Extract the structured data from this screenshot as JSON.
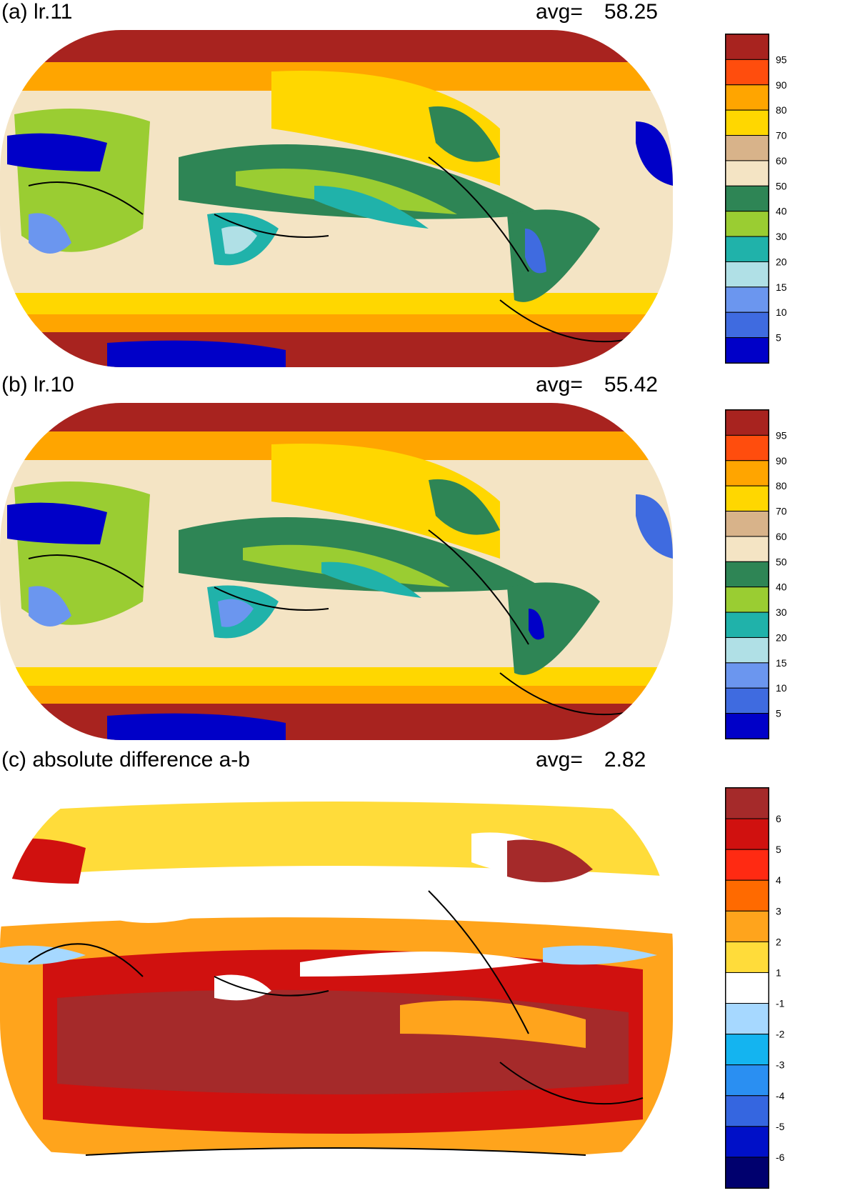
{
  "panels": [
    {
      "id": "a",
      "title": "(a) lr.11",
      "avg_label": "avg=",
      "avg_value": "58.25",
      "colorbar": {
        "colors": [
          "#a8231f",
          "#ff4d0d",
          "#ffa500",
          "#ffd700",
          "#d8b38a",
          "#f4e4c4",
          "#2e8555",
          "#9acd32",
          "#20b2aa",
          "#b0e0e6",
          "#6b96ef",
          "#3f6be0",
          "#0000c8"
        ],
        "labels": [
          "95",
          "90",
          "80",
          "70",
          "60",
          "50",
          "40",
          "30",
          "20",
          "15",
          "10",
          "5"
        ]
      }
    },
    {
      "id": "b",
      "title": "(b) lr.10",
      "avg_label": "avg=",
      "avg_value": "55.42",
      "colorbar": {
        "colors": [
          "#a8231f",
          "#ff4d0d",
          "#ffa500",
          "#ffd700",
          "#d8b38a",
          "#f4e4c4",
          "#2e8555",
          "#9acd32",
          "#20b2aa",
          "#b0e0e6",
          "#6b96ef",
          "#3f6be0",
          "#0000c8"
        ],
        "labels": [
          "95",
          "90",
          "80",
          "70",
          "60",
          "50",
          "40",
          "30",
          "20",
          "15",
          "10",
          "5"
        ]
      }
    },
    {
      "id": "c",
      "title": "(c) absolute difference a-b",
      "avg_label": "avg=",
      "avg_value": "2.82",
      "colorbar": {
        "colors": [
          "#a52a2a",
          "#d0110f",
          "#ff2a12",
          "#ff6a00",
          "#ffa41c",
          "#ffdc3a",
          "#ffffff",
          "#a6d8ff",
          "#14b4f0",
          "#2a8ff2",
          "#3566e0",
          "#0010c8",
          "#00006e"
        ],
        "labels": [
          "6",
          "5",
          "4",
          "3",
          "2",
          "1",
          "-1",
          "-2",
          "-3",
          "-4",
          "-5",
          "-6"
        ]
      }
    }
  ]
}
